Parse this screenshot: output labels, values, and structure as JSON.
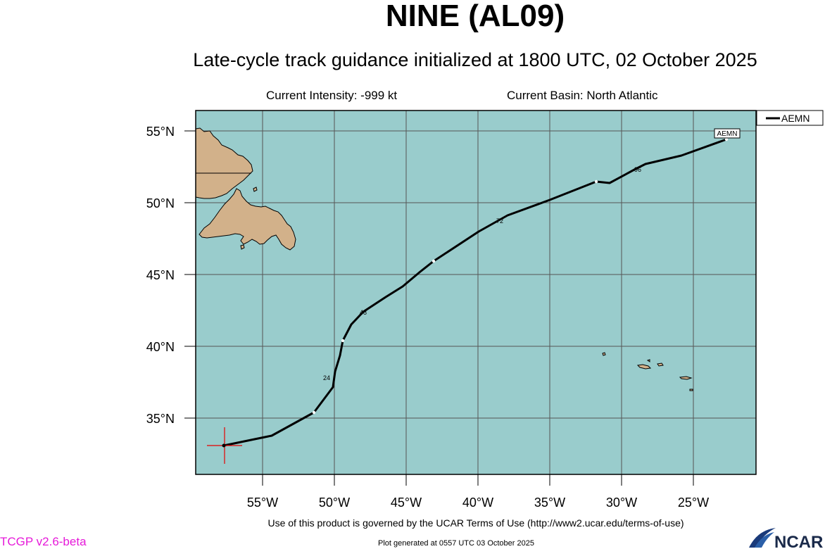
{
  "title": "NINE (AL09)",
  "subtitle": "Late-cycle track guidance initialized at 1800 UTC, 02 October 2025",
  "info": {
    "intensity": "Current Intensity: -999 kt",
    "basin": "Current Basin: North Atlantic"
  },
  "legend": {
    "label": "AEMN"
  },
  "track_end_label": "AEMN",
  "lat_labels": [
    "55°N",
    "50°N",
    "45°N",
    "40°N",
    "35°N"
  ],
  "lon_labels": [
    "55°W",
    "50°W",
    "45°W",
    "40°W",
    "35°W",
    "30°W",
    "25°W"
  ],
  "forecast_hour_labels": [
    "24",
    "48",
    "72",
    "96"
  ],
  "footer": {
    "terms": "Use of this product is governed by the UCAR Terms of Use (http://www2.ucar.edu/terms-of-use)",
    "version": "TCGP v2.6-beta",
    "generated": "Plot generated at 0557 UTC   03 October 2025",
    "logo_text": "NCAR"
  },
  "colors": {
    "ocean": "#99cccc",
    "land": "#d2b18a",
    "grid": "#555555",
    "track": "#000000",
    "current_position": "#e60000",
    "version_text": "#e61ad9"
  },
  "map_extent": {
    "lon_min": -59.7,
    "lon_max": -20.7,
    "lat_min": 31.0,
    "lat_max": 56.4
  }
}
